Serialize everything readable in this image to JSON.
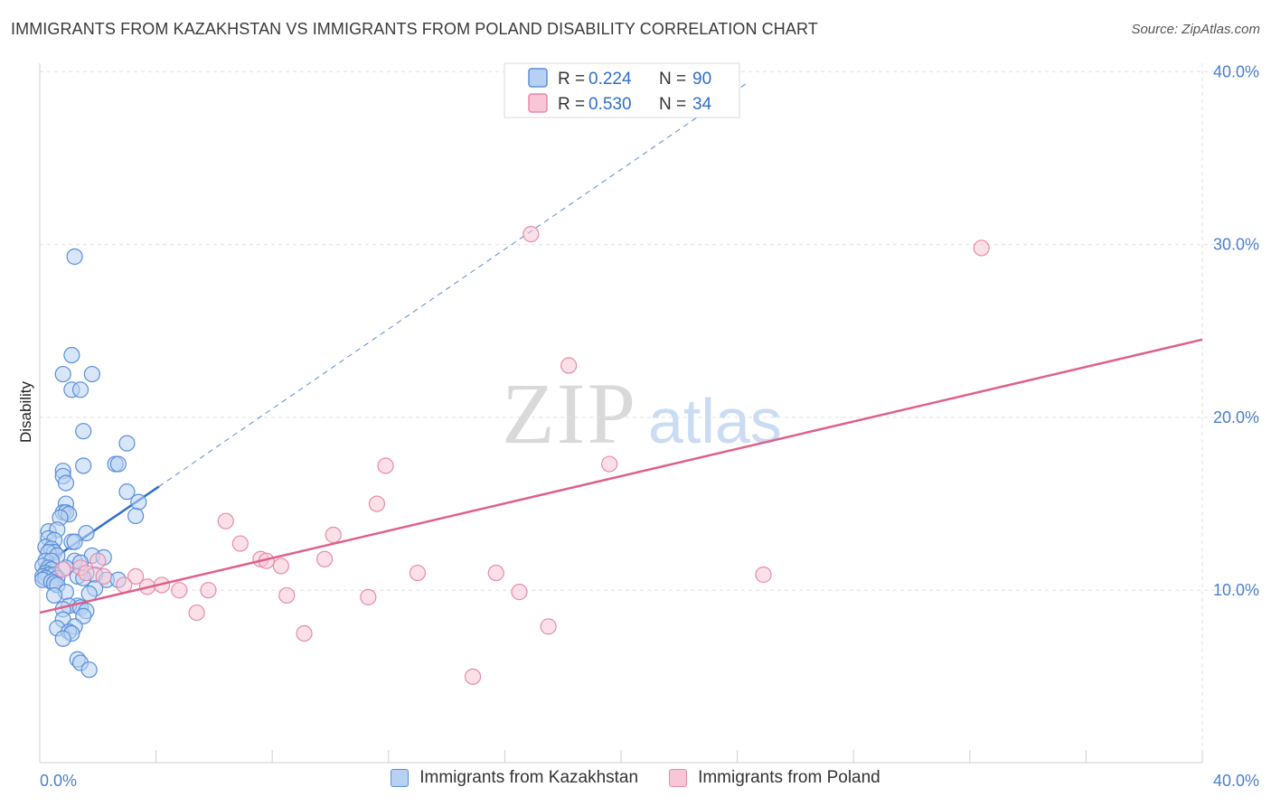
{
  "title": "IMMIGRANTS FROM KAZAKHSTAN VS IMMIGRANTS FROM POLAND DISABILITY CORRELATION CHART",
  "source": "Source: ZipAtlas.com",
  "watermark": {
    "zip": "ZIP",
    "atlas": "atlas"
  },
  "colors": {
    "kazakhstan_fill": "#b8d1f3",
    "kazakhstan_stroke": "#5a8fd8",
    "kazakhstan_line": "#2f6fca",
    "poland_fill": "#f8c6d6",
    "poland_stroke": "#e88ba9",
    "poland_line": "#e0608a",
    "tick_text": "#4a7fd0",
    "grid": "#e0e0e0"
  },
  "legend": {
    "rows": [
      {
        "r_label": "R =",
        "r_value": "0.224",
        "n_label": "N =",
        "n_value": "90"
      },
      {
        "r_label": "R =",
        "r_value": "0.530",
        "n_label": "N =",
        "n_value": "34"
      }
    ]
  },
  "bottom_legend": {
    "kazakhstan": "Immigrants from Kazakhstan",
    "poland": "Immigrants from Poland"
  },
  "chart_data": {
    "type": "scatter",
    "title": "IMMIGRANTS FROM KAZAKHSTAN VS IMMIGRANTS FROM POLAND DISABILITY CORRELATION CHART",
    "xlabel": "",
    "ylabel": "Disability",
    "xlim": [
      0,
      40
    ],
    "ylim": [
      0,
      42
    ],
    "x_ticks": [
      {
        "value": 0,
        "label": "0.0%"
      },
      {
        "value": 40,
        "label": "40.0%"
      }
    ],
    "y_ticks": [
      {
        "value": 10,
        "label": "10.0%"
      },
      {
        "value": 20,
        "label": "20.0%"
      },
      {
        "value": 30,
        "label": "30.0%"
      },
      {
        "value": 40,
        "label": "40.0%"
      }
    ],
    "grid": true,
    "legend_placement": "top-center",
    "series": [
      {
        "name": "Immigrants from Kazakhstan",
        "r": 0.224,
        "n": 90,
        "trend_solid": [
          [
            0,
            11.3
          ],
          [
            4.1,
            16.0
          ]
        ],
        "trend_dashed": [
          [
            4.1,
            16.0
          ],
          [
            24.3,
            39.3
          ]
        ],
        "points": [
          [
            1.2,
            29.3
          ],
          [
            1.1,
            23.6
          ],
          [
            0.8,
            22.5
          ],
          [
            1.8,
            22.5
          ],
          [
            1.1,
            21.6
          ],
          [
            1.4,
            21.6
          ],
          [
            1.5,
            19.2
          ],
          [
            3.0,
            18.5
          ],
          [
            1.5,
            17.2
          ],
          [
            2.6,
            17.3
          ],
          [
            2.7,
            17.3
          ],
          [
            0.8,
            16.9
          ],
          [
            0.8,
            16.6
          ],
          [
            0.9,
            16.2
          ],
          [
            3.0,
            15.7
          ],
          [
            3.4,
            15.1
          ],
          [
            0.9,
            15.0
          ],
          [
            0.8,
            14.5
          ],
          [
            0.9,
            14.5
          ],
          [
            1.0,
            14.4
          ],
          [
            0.7,
            14.2
          ],
          [
            3.3,
            14.3
          ],
          [
            0.3,
            13.4
          ],
          [
            0.6,
            13.5
          ],
          [
            1.6,
            13.3
          ],
          [
            0.3,
            13.0
          ],
          [
            0.5,
            12.9
          ],
          [
            1.1,
            12.8
          ],
          [
            1.2,
            12.8
          ],
          [
            0.2,
            12.5
          ],
          [
            0.4,
            12.4
          ],
          [
            0.5,
            12.2
          ],
          [
            0.3,
            12.2
          ],
          [
            0.6,
            12.0
          ],
          [
            1.8,
            12.0
          ],
          [
            2.2,
            11.9
          ],
          [
            0.2,
            11.7
          ],
          [
            0.4,
            11.7
          ],
          [
            1.2,
            11.7
          ],
          [
            1.4,
            11.6
          ],
          [
            0.1,
            11.4
          ],
          [
            0.3,
            11.3
          ],
          [
            0.4,
            11.2
          ],
          [
            0.9,
            11.3
          ],
          [
            0.2,
            11.0
          ],
          [
            0.3,
            10.9
          ],
          [
            0.1,
            10.8
          ],
          [
            0.5,
            10.9
          ],
          [
            1.9,
            10.9
          ],
          [
            0.2,
            10.7
          ],
          [
            0.6,
            10.7
          ],
          [
            1.3,
            10.8
          ],
          [
            1.5,
            10.7
          ],
          [
            2.3,
            10.6
          ],
          [
            2.7,
            10.6
          ],
          [
            0.1,
            10.6
          ],
          [
            0.4,
            10.5
          ],
          [
            0.5,
            10.4
          ],
          [
            0.6,
            10.3
          ],
          [
            1.9,
            10.1
          ],
          [
            0.9,
            9.9
          ],
          [
            1.7,
            9.8
          ],
          [
            0.5,
            9.7
          ],
          [
            1.3,
            9.1
          ],
          [
            1.0,
            9.1
          ],
          [
            1.4,
            9.0
          ],
          [
            0.8,
            8.9
          ],
          [
            1.6,
            8.8
          ],
          [
            1.5,
            8.5
          ],
          [
            0.8,
            8.3
          ],
          [
            1.2,
            7.9
          ],
          [
            0.6,
            7.8
          ],
          [
            1.0,
            7.6
          ],
          [
            1.1,
            7.5
          ],
          [
            0.8,
            7.2
          ],
          [
            1.3,
            6.0
          ],
          [
            1.4,
            5.8
          ],
          [
            1.7,
            5.4
          ]
        ]
      },
      {
        "name": "Immigrants from Poland",
        "r": 0.53,
        "n": 34,
        "trend": [
          [
            0,
            8.7
          ],
          [
            40,
            24.5
          ]
        ],
        "points": [
          [
            16.9,
            30.6
          ],
          [
            32.4,
            29.8
          ],
          [
            18.2,
            23.0
          ],
          [
            11.9,
            17.2
          ],
          [
            19.6,
            17.3
          ],
          [
            11.6,
            15.0
          ],
          [
            6.4,
            14.0
          ],
          [
            10.1,
            13.2
          ],
          [
            6.9,
            12.7
          ],
          [
            7.6,
            11.8
          ],
          [
            7.8,
            11.7
          ],
          [
            8.3,
            11.4
          ],
          [
            9.8,
            11.8
          ],
          [
            2.0,
            11.7
          ],
          [
            1.4,
            11.3
          ],
          [
            0.8,
            11.2
          ],
          [
            1.6,
            11.0
          ],
          [
            2.2,
            10.8
          ],
          [
            3.3,
            10.8
          ],
          [
            13.0,
            11.0
          ],
          [
            15.7,
            11.0
          ],
          [
            24.9,
            10.9
          ],
          [
            2.9,
            10.3
          ],
          [
            3.7,
            10.2
          ],
          [
            4.2,
            10.3
          ],
          [
            4.8,
            10.0
          ],
          [
            5.8,
            10.0
          ],
          [
            8.5,
            9.7
          ],
          [
            11.3,
            9.6
          ],
          [
            16.5,
            9.9
          ],
          [
            5.4,
            8.7
          ],
          [
            17.5,
            7.9
          ],
          [
            9.1,
            7.5
          ],
          [
            14.9,
            5.0
          ]
        ]
      }
    ]
  }
}
